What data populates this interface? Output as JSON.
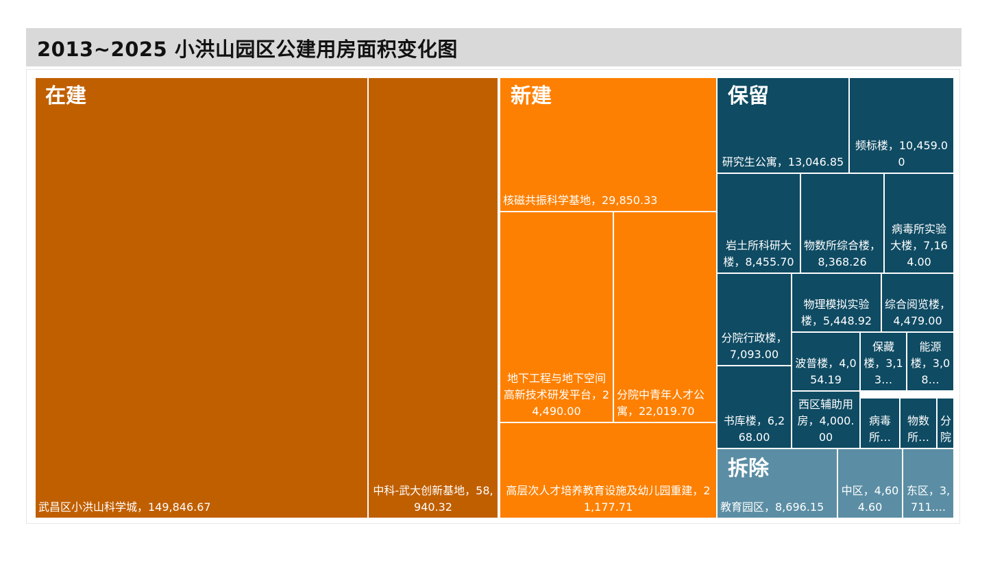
{
  "title": "2013~2025  小洪山园区公建用房面积变化图",
  "colors": {
    "在建": "#c05f00",
    "新建": "#fd8002",
    "保留": "#0f4b63",
    "拆除": "#5b8ea4"
  },
  "chart_data": {
    "type": "treemap",
    "title": "2013~2025  小洪山园区公建用房面积变化图",
    "groups": [
      {
        "name": "在建",
        "items": [
          {
            "label": "武昌区小洪山科学城，149,846.67",
            "value": 149846.67
          },
          {
            "label": "中科-武大创新基地，58,940.32",
            "value": 58940.32
          }
        ]
      },
      {
        "name": "新建",
        "items": [
          {
            "label": "核磁共振科学基地，29,850.33",
            "value": 29850.33
          },
          {
            "label": "地下工程与地下空间高新技术研发平台，24,490.00",
            "value": 24490.0
          },
          {
            "label": "分院中青年人才公寓，22,019.70",
            "value": 22019.7
          },
          {
            "label": "高层次人才培养教育设施及幼儿园重建，21,177.71",
            "value": 21177.71
          }
        ]
      },
      {
        "name": "保留",
        "items": [
          {
            "label": "研究生公寓，13,046.85",
            "value": 13046.85
          },
          {
            "label": "频标楼，10,459.00",
            "value": 10459.0
          },
          {
            "label": "岩土所科研大楼，8,455.70",
            "value": 8455.7
          },
          {
            "label": "物数所综合楼，8,368.26",
            "value": 8368.26
          },
          {
            "label": "病毒所实验大楼，7,164.00",
            "value": 7164.0
          },
          {
            "label": "分院行政楼，7,093.00",
            "value": 7093.0
          },
          {
            "label": "物理模拟实验楼，5,448.92",
            "value": 5448.92
          },
          {
            "label": "综合阅览楼，4,479.00",
            "value": 4479.0
          },
          {
            "label": "书库楼，6,268.00",
            "value": 6268.0
          },
          {
            "label": "波普楼，4,054.19",
            "value": 4054.19
          },
          {
            "label": "保藏楼，3,13…",
            "value": null
          },
          {
            "label": "能源楼，3,08…",
            "value": null
          },
          {
            "label": "西区辅助用房，4,000.00",
            "value": 4000.0
          },
          {
            "label": "病毒所…",
            "value": null
          },
          {
            "label": "物数所…",
            "value": null
          },
          {
            "label": "分院",
            "value": null
          }
        ]
      },
      {
        "name": "拆除",
        "items": [
          {
            "label": "教育园区，8,696.15",
            "value": 8696.15
          },
          {
            "label": "中区，4,604.60",
            "value": 4604.6
          },
          {
            "label": "东区，3,711....",
            "value": null
          }
        ]
      }
    ]
  }
}
